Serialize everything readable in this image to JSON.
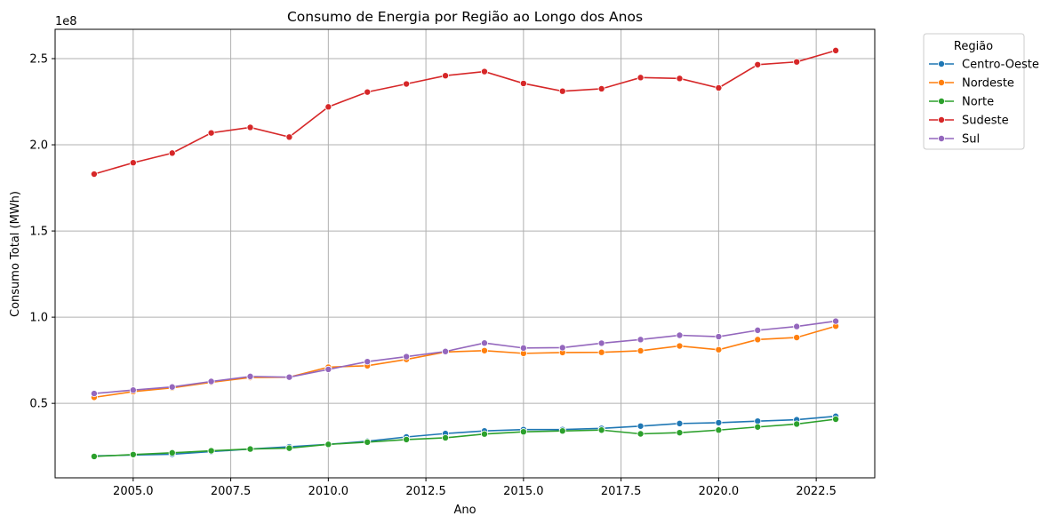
{
  "chart_data": {
    "type": "line",
    "title": "Consumo de Energia por Região ao Longo dos Anos",
    "xlabel": "Ano",
    "ylabel": "Consumo Total (MWh)",
    "y_offset_label": "1e8",
    "x": [
      2004,
      2005,
      2006,
      2007,
      2008,
      2009,
      2010,
      2011,
      2012,
      2013,
      2014,
      2015,
      2016,
      2017,
      2018,
      2019,
      2020,
      2021,
      2022,
      2023
    ],
    "xlim": [
      2003.0,
      2024.0
    ],
    "ylim": [
      0.068,
      2.67
    ],
    "y_unit_scale": 100000000,
    "xticks": [
      2005.0,
      2007.5,
      2010.0,
      2012.5,
      2015.0,
      2017.5,
      2020.0,
      2022.5
    ],
    "xtick_labels": [
      "2005.0",
      "2007.5",
      "2010.0",
      "2012.5",
      "2015.0",
      "2017.5",
      "2020.0",
      "2022.5"
    ],
    "yticks": [
      0.5,
      1.0,
      1.5,
      2.0,
      2.5
    ],
    "ytick_labels": [
      "0.5",
      "1.0",
      "1.5",
      "2.0",
      "2.5"
    ],
    "grid": true,
    "legend": {
      "title": "Região",
      "placement": "outside-top-right"
    },
    "series": [
      {
        "name": "Centro-Oeste",
        "color": "#1f77b4",
        "values": [
          0.195,
          0.2,
          0.205,
          0.22,
          0.235,
          0.248,
          0.262,
          0.28,
          0.305,
          0.325,
          0.34,
          0.348,
          0.348,
          0.355,
          0.368,
          0.383,
          0.388,
          0.397,
          0.405,
          0.425
        ]
      },
      {
        "name": "Nordeste",
        "color": "#ff7f0e",
        "values": [
          0.535,
          0.568,
          0.59,
          0.622,
          0.65,
          0.652,
          0.71,
          0.718,
          0.755,
          0.798,
          0.806,
          0.79,
          0.795,
          0.796,
          0.805,
          0.833,
          0.811,
          0.87,
          0.882,
          0.948
        ]
      },
      {
        "name": "Norte",
        "color": "#2ca02c",
        "values": [
          0.192,
          0.203,
          0.213,
          0.225,
          0.235,
          0.24,
          0.262,
          0.275,
          0.29,
          0.3,
          0.322,
          0.335,
          0.34,
          0.345,
          0.323,
          0.33,
          0.345,
          0.363,
          0.38,
          0.408
        ]
      },
      {
        "name": "Sudeste",
        "color": "#d62728",
        "values": [
          1.83,
          1.896,
          1.952,
          2.069,
          2.101,
          2.045,
          2.22,
          2.306,
          2.353,
          2.401,
          2.425,
          2.356,
          2.311,
          2.325,
          2.39,
          2.385,
          2.33,
          2.465,
          2.481,
          2.547
        ]
      },
      {
        "name": "Sul",
        "color": "#9467bd",
        "values": [
          0.557,
          0.577,
          0.595,
          0.627,
          0.656,
          0.652,
          0.697,
          0.742,
          0.771,
          0.801,
          0.85,
          0.821,
          0.823,
          0.849,
          0.87,
          0.895,
          0.887,
          0.924,
          0.946,
          0.977
        ]
      }
    ]
  }
}
